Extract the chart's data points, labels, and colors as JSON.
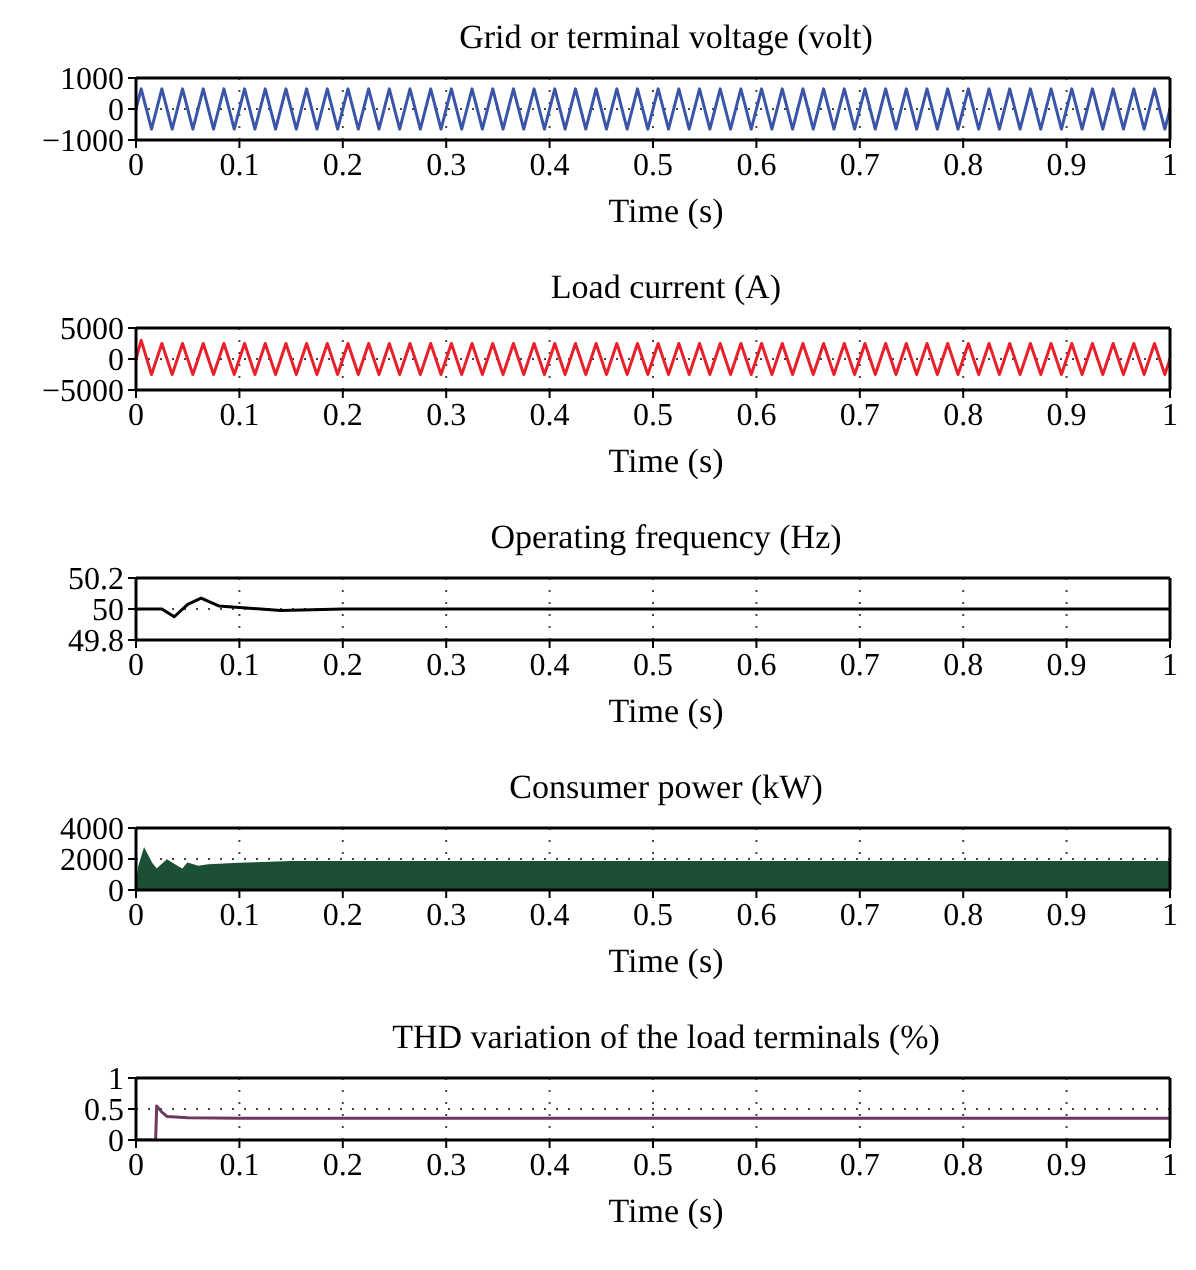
{
  "chart_data": [
    {
      "type": "line",
      "title": "Grid or terminal voltage (volt)",
      "xlabel": "Time (s)",
      "xlim": [
        0,
        1
      ],
      "xticks": [
        0,
        0.1,
        0.2,
        0.3,
        0.4,
        0.5,
        0.6,
        0.7,
        0.8,
        0.9,
        1
      ],
      "ylim": [
        -1000,
        1000
      ],
      "yticks": [
        -1000,
        0,
        1000
      ],
      "grid": true,
      "series": [
        {
          "color": "#3a55a8",
          "x": [
            0,
            0.005,
            0.015,
            0.025,
            0.035,
            0.045,
            0.055,
            0.065,
            0.075,
            0.085,
            0.095,
            0.105,
            0.115,
            0.125,
            0.135,
            0.145,
            0.155,
            0.165,
            0.175,
            0.185,
            0.195,
            0.205,
            0.215,
            0.225,
            0.235,
            0.245,
            0.255,
            0.265,
            0.275,
            0.285,
            0.295,
            0.305,
            0.315,
            0.325,
            0.335,
            0.345,
            0.355,
            0.365,
            0.375,
            0.385,
            0.395,
            0.405,
            0.415,
            0.425,
            0.435,
            0.445,
            0.455,
            0.465,
            0.475,
            0.485,
            0.495,
            0.505,
            0.515,
            0.525,
            0.535,
            0.545,
            0.555,
            0.565,
            0.575,
            0.585,
            0.595,
            0.605,
            0.615,
            0.625,
            0.635,
            0.645,
            0.655,
            0.665,
            0.675,
            0.685,
            0.695,
            0.705,
            0.715,
            0.725,
            0.735,
            0.745,
            0.755,
            0.765,
            0.775,
            0.785,
            0.795,
            0.805,
            0.815,
            0.825,
            0.835,
            0.845,
            0.855,
            0.865,
            0.875,
            0.885,
            0.895,
            0.905,
            0.915,
            0.925,
            0.935,
            0.945,
            0.955,
            0.965,
            0.975,
            0.985,
            0.995,
            1
          ],
          "values": [
            0,
            650,
            -650,
            650,
            -650,
            650,
            -650,
            650,
            -650,
            650,
            -650,
            650,
            -650,
            650,
            -650,
            650,
            -650,
            650,
            -650,
            650,
            -650,
            650,
            -650,
            650,
            -650,
            650,
            -650,
            650,
            -650,
            650,
            -650,
            650,
            -650,
            650,
            -650,
            650,
            -650,
            650,
            -650,
            650,
            -650,
            650,
            -650,
            650,
            -650,
            650,
            -650,
            650,
            -650,
            650,
            -650,
            650,
            -650,
            650,
            -650,
            650,
            -650,
            650,
            -650,
            650,
            -650,
            650,
            -650,
            650,
            -650,
            650,
            -650,
            650,
            -650,
            650,
            -650,
            650,
            -650,
            650,
            -650,
            650,
            -650,
            650,
            -650,
            650,
            -650,
            650,
            -650,
            650,
            -650,
            650,
            -650,
            650,
            -650,
            650,
            -650,
            650,
            -650,
            650,
            -650,
            650,
            -650,
            650,
            -650,
            650,
            -650,
            0
          ]
        }
      ]
    },
    {
      "type": "line",
      "title": "Load current (A)",
      "xlabel": "Time (s)",
      "xlim": [
        0,
        1
      ],
      "xticks": [
        0,
        0.1,
        0.2,
        0.3,
        0.4,
        0.5,
        0.6,
        0.7,
        0.8,
        0.9,
        1
      ],
      "ylim": [
        -5000,
        5000
      ],
      "yticks": [
        -5000,
        0,
        5000
      ],
      "grid": true,
      "series": [
        {
          "color": "#e8202a",
          "x": [
            0,
            0.005,
            0.015,
            0.025,
            0.035,
            0.045,
            0.055,
            0.065,
            0.075,
            0.085,
            0.095,
            0.105,
            0.115,
            0.125,
            0.135,
            0.145,
            0.155,
            0.165,
            0.175,
            0.185,
            0.195,
            0.205,
            0.215,
            0.225,
            0.235,
            0.245,
            0.255,
            0.265,
            0.275,
            0.285,
            0.295,
            0.305,
            0.315,
            0.325,
            0.335,
            0.345,
            0.355,
            0.365,
            0.375,
            0.385,
            0.395,
            0.405,
            0.415,
            0.425,
            0.435,
            0.445,
            0.455,
            0.465,
            0.475,
            0.485,
            0.495,
            0.505,
            0.515,
            0.525,
            0.535,
            0.545,
            0.555,
            0.565,
            0.575,
            0.585,
            0.595,
            0.605,
            0.615,
            0.625,
            0.635,
            0.645,
            0.655,
            0.665,
            0.675,
            0.685,
            0.695,
            0.705,
            0.715,
            0.725,
            0.735,
            0.745,
            0.755,
            0.765,
            0.775,
            0.785,
            0.795,
            0.805,
            0.815,
            0.825,
            0.835,
            0.845,
            0.855,
            0.865,
            0.875,
            0.885,
            0.895,
            0.905,
            0.915,
            0.925,
            0.935,
            0.945,
            0.955,
            0.965,
            0.975,
            0.985,
            0.995,
            1
          ],
          "values": [
            0,
            3000,
            -2500,
            2500,
            -2500,
            2500,
            -2500,
            2500,
            -2500,
            2500,
            -2500,
            2500,
            -2500,
            2500,
            -2500,
            2500,
            -2500,
            2500,
            -2500,
            2500,
            -2500,
            2500,
            -2500,
            2500,
            -2500,
            2500,
            -2500,
            2500,
            -2500,
            2500,
            -2500,
            2500,
            -2500,
            2500,
            -2500,
            2500,
            -2500,
            2500,
            -2500,
            2500,
            -2500,
            2500,
            -2500,
            2500,
            -2500,
            2500,
            -2500,
            2500,
            -2500,
            2500,
            -2500,
            2500,
            -2500,
            2500,
            -2500,
            2500,
            -2500,
            2500,
            -2500,
            2500,
            -2500,
            2500,
            -2500,
            2500,
            -2500,
            2500,
            -2500,
            2500,
            -2500,
            2500,
            -2500,
            2500,
            -2500,
            2500,
            -2500,
            2500,
            -2500,
            2500,
            -2500,
            2500,
            -2500,
            2500,
            -2500,
            2500,
            -2500,
            2500,
            -2500,
            2500,
            -2500,
            2500,
            -2500,
            2500,
            -2500,
            2500,
            -2500,
            2500,
            -2500,
            2500,
            -2500,
            2500,
            -2500,
            0
          ]
        }
      ]
    },
    {
      "type": "line",
      "title": "Operating frequency (Hz)",
      "xlabel": "Time (s)",
      "xlim": [
        0,
        1
      ],
      "xticks": [
        0,
        0.1,
        0.2,
        0.3,
        0.4,
        0.5,
        0.6,
        0.7,
        0.8,
        0.9,
        1
      ],
      "ylim": [
        49.8,
        50.2
      ],
      "yticks": [
        49.8,
        50,
        50.2
      ],
      "grid": true,
      "series": [
        {
          "color": "#000000",
          "x": [
            0,
            0.025,
            0.037,
            0.05,
            0.063,
            0.08,
            0.1,
            0.14,
            0.2,
            0.5,
            1
          ],
          "values": [
            50,
            50,
            49.95,
            50.03,
            50.07,
            50.02,
            50.01,
            49.99,
            50,
            50,
            50
          ]
        }
      ]
    },
    {
      "type": "area",
      "title": "Consumer power (kW)",
      "xlabel": "Time (s)",
      "xlim": [
        0,
        1
      ],
      "xticks": [
        0,
        0.1,
        0.2,
        0.3,
        0.4,
        0.5,
        0.6,
        0.7,
        0.8,
        0.9,
        1
      ],
      "ylim": [
        0,
        4000
      ],
      "yticks": [
        0,
        2000,
        4000
      ],
      "grid": true,
      "series": [
        {
          "color": "#1b5034",
          "x": [
            0,
            0.003,
            0.008,
            0.015,
            0.02,
            0.03,
            0.04,
            0.045,
            0.05,
            0.06,
            0.07,
            0.1,
            0.15,
            0.2,
            0.3,
            0.5,
            0.7,
            1
          ],
          "values": [
            0,
            1500,
            2600,
            1700,
            1300,
            1900,
            1500,
            1300,
            1700,
            1500,
            1600,
            1700,
            1800,
            1800,
            1800,
            1800,
            1800,
            1800
          ]
        }
      ]
    },
    {
      "type": "line",
      "title": "THD variation of the load terminals (%)",
      "xlabel": "Time (s)",
      "xlim": [
        0,
        1
      ],
      "xticks": [
        0,
        0.1,
        0.2,
        0.3,
        0.4,
        0.5,
        0.6,
        0.7,
        0.8,
        0.9,
        1
      ],
      "ylim": [
        0,
        1
      ],
      "yticks": [
        0,
        0.5,
        1
      ],
      "grid": true,
      "series": [
        {
          "color": "#6b3a5c",
          "x": [
            0,
            0.019,
            0.02,
            0.025,
            0.03,
            0.05,
            0.1,
            1
          ],
          "values": [
            0,
            0,
            0.55,
            0.45,
            0.38,
            0.36,
            0.35,
            0.35
          ]
        }
      ]
    }
  ]
}
